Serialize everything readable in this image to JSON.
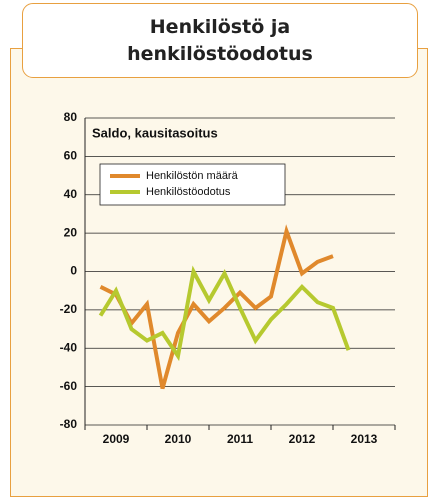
{
  "chart_data": {
    "type": "line",
    "title": "Henkilöstö ja henkilöstöodotus",
    "subtitle": "Saldo, kausitasoitus",
    "x": [
      2009.25,
      2009.5,
      2009.75,
      2010.0,
      2010.25,
      2010.5,
      2010.75,
      2011.0,
      2011.25,
      2011.5,
      2011.75,
      2012.0,
      2012.25,
      2012.5,
      2012.75,
      2013.0,
      2013.25
    ],
    "series": [
      {
        "name": "Henkilöstön määrä",
        "color": "#e0892c",
        "values": [
          -8,
          -12,
          -27,
          -17,
          -61,
          -32,
          -17,
          -26,
          -19,
          -11,
          -19,
          -13,
          21,
          -1,
          5,
          8,
          null
        ]
      },
      {
        "name": "Henkilöstöodotus",
        "color": "#b6c92f",
        "values": [
          -23,
          -10,
          -30,
          -36,
          -32,
          -44,
          0,
          -15,
          -1,
          -19,
          -36,
          -25,
          -17,
          -8,
          -16,
          -19,
          -41
        ]
      }
    ],
    "xlim": [
      2009,
      2014
    ],
    "xticks": [
      2009,
      2010,
      2011,
      2012,
      2013,
      2014
    ],
    "xtick_labels": [
      {
        "value": 2009.5,
        "label": "2009"
      },
      {
        "value": 2010.5,
        "label": "2010"
      },
      {
        "value": 2011.5,
        "label": "2011"
      },
      {
        "value": 2012.5,
        "label": "2012"
      },
      {
        "value": 2013.5,
        "label": "2013"
      }
    ],
    "ylim": [
      -80,
      80
    ],
    "yticks": [
      -80,
      -60,
      -40,
      -20,
      0,
      20,
      40,
      60,
      80
    ],
    "grid": true
  }
}
